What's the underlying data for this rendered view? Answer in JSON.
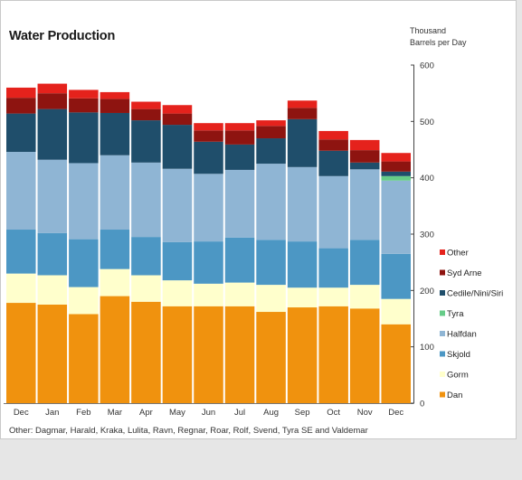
{
  "window": {
    "title": "Water Production"
  },
  "chart_data": {
    "type": "bar",
    "stacked": true,
    "title": "Water Production",
    "unit_label": [
      "Thousand",
      "Barrels per Day"
    ],
    "ylim": [
      0,
      600
    ],
    "y_ticks": [
      "0",
      "100",
      "200",
      "300",
      "400",
      "500",
      "600"
    ],
    "y_axis_side": "right",
    "grid": false,
    "legend_placement": "right",
    "categories": [
      "Dec",
      "Jan",
      "Feb",
      "Mar",
      "Apr",
      "May",
      "Jun",
      "Jul",
      "Aug",
      "Sep",
      "Oct",
      "Nov",
      "Dec"
    ],
    "series": [
      {
        "name": "Dan",
        "color": "#f0920e",
        "values": [
          178,
          175,
          158,
          190,
          180,
          172,
          172,
          172,
          162,
          170,
          172,
          168,
          140
        ]
      },
      {
        "name": "Gorm",
        "color": "#ffffcc",
        "values": [
          52,
          52,
          48,
          48,
          47,
          46,
          40,
          42,
          48,
          35,
          33,
          42,
          45
        ]
      },
      {
        "name": "Skjold",
        "color": "#4c97c4",
        "values": [
          78,
          75,
          85,
          70,
          68,
          68,
          75,
          80,
          80,
          82,
          70,
          80,
          80
        ]
      },
      {
        "name": "Halfdan",
        "color": "#8fb5d4",
        "values": [
          138,
          130,
          135,
          132,
          132,
          130,
          120,
          120,
          135,
          132,
          128,
          125,
          130
        ]
      },
      {
        "name": "Tyra",
        "color": "#66cc88",
        "values": [
          0,
          0,
          0,
          0,
          0,
          0,
          0,
          0,
          0,
          0,
          0,
          0,
          8
        ]
      },
      {
        "name": "Cedile/Nini/Siri",
        "color": "#1f4e6b",
        "values": [
          68,
          90,
          90,
          75,
          75,
          78,
          57,
          45,
          45,
          85,
          45,
          12,
          8
        ]
      },
      {
        "name": "Syd Arne",
        "color": "#8e1410",
        "values": [
          28,
          28,
          25,
          25,
          20,
          20,
          20,
          25,
          22,
          20,
          20,
          22,
          18
        ]
      },
      {
        "name": "Other",
        "color": "#e5221c",
        "values": [
          18,
          17,
          15,
          12,
          13,
          15,
          13,
          13,
          10,
          13,
          15,
          18,
          15
        ]
      }
    ],
    "note": "Other: Dagmar, Harald, Kraka, Lulita, Ravn, Regnar, Roar, Rolf, Svend, Tyra SE and Valdemar"
  }
}
